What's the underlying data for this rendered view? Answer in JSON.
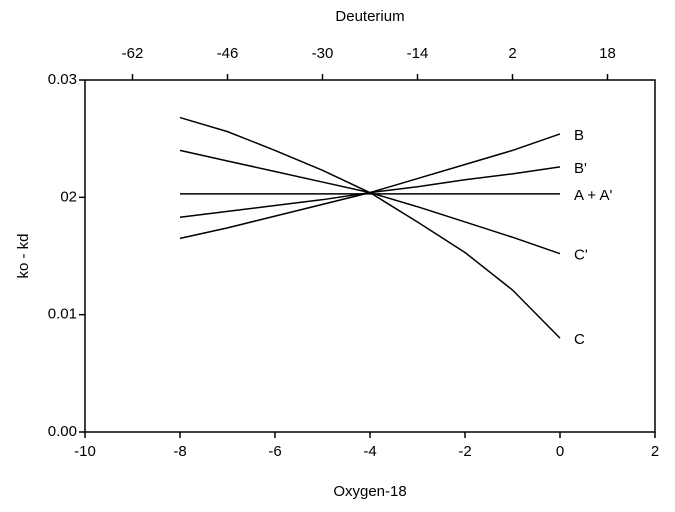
{
  "chart_data": {
    "type": "line",
    "xlabel": "Oxygen-18",
    "x2label": "Deuterium",
    "ylabel": "ko - kd",
    "x": [
      -8,
      -7,
      -6,
      -5,
      -4,
      -3,
      -2,
      -1,
      0
    ],
    "xlim": [
      -10,
      2
    ],
    "xticks": [
      -10,
      -8,
      -6,
      -4,
      -2,
      0,
      2
    ],
    "x2lim": [
      -70,
      26
    ],
    "x2ticks": [
      -62,
      -46,
      -30,
      -14,
      2,
      18
    ],
    "ylim": [
      0,
      0.03
    ],
    "yticks": [
      {
        "value": 0,
        "label": "0.00"
      },
      0.01,
      {
        "value": 0.02,
        "label": "02"
      },
      {
        "value": 0.03,
        "label": "0.03"
      }
    ],
    "series": [
      {
        "name": "B",
        "color": "#000000",
        "values": [
          0.0165,
          0.0174,
          0.0184,
          0.0194,
          0.0204,
          0.0216,
          0.0228,
          0.024,
          0.0254
        ]
      },
      {
        "name": "B'",
        "color": "#000000",
        "values": [
          0.0183,
          0.0188,
          0.0193,
          0.0198,
          0.0204,
          0.0209,
          0.0215,
          0.022,
          0.0226
        ]
      },
      {
        "name": "A + A'",
        "color": "#000000",
        "values": [
          0.0203,
          0.0203,
          0.0203,
          0.0203,
          0.0203,
          0.0203,
          0.0203,
          0.0203,
          0.0203
        ]
      },
      {
        "name": "C'",
        "color": "#000000",
        "values": [
          0.024,
          0.0231,
          0.0222,
          0.0213,
          0.0204,
          0.0192,
          0.0179,
          0.0166,
          0.0152
        ]
      },
      {
        "name": "C",
        "color": "#000000",
        "values": [
          0.0268,
          0.0256,
          0.024,
          0.0223,
          0.0204,
          0.0179,
          0.0153,
          0.0121,
          0.008
        ]
      }
    ]
  }
}
